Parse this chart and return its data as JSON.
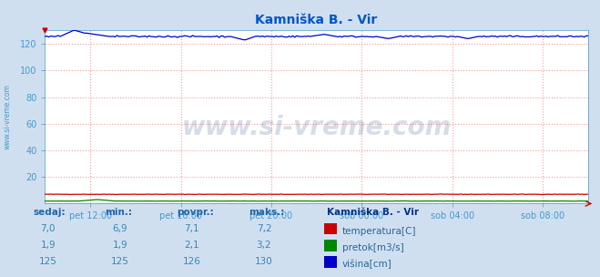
{
  "title": "Kamniška B. - Vir",
  "title_color": "#0055cc",
  "bg_color": "#d0dff0",
  "plot_bg_color": "#ffffff",
  "watermark": "www.si-vreme.com",
  "watermark_color": "#1a4488",
  "watermark_alpha": 0.18,
  "grid_color": "#ff9999",
  "grid_linestyle": "dotted",
  "xlabel_color": "#4499cc",
  "ylabel_color": "#4499cc",
  "x_ticks": [
    "pet 12:00",
    "pet 16:00",
    "pet 20:00",
    "sob 00:00",
    "sob 04:00",
    "sob 08:00"
  ],
  "ylim": [
    0,
    130
  ],
  "yticks": [
    20,
    40,
    60,
    80,
    100,
    120
  ],
  "n_points": 288,
  "temp_color": "#cc0000",
  "pretok_color": "#008800",
  "visina_color": "#0000cc",
  "legend_title": "Kamniška B. - Vir",
  "legend_title_color": "#003388",
  "legend_label_color": "#226699",
  "table_header_color": "#2266aa",
  "table_data_color": "#3388bb",
  "sedaj_label": "sedaj:",
  "min_label": "min.:",
  "povpr_label": "povpr.:",
  "maks_label": "maks.:",
  "temp_sedaj": "7,0",
  "temp_min": "6,9",
  "temp_povpr": "7,1",
  "temp_maks": "7,2",
  "pretok_sedaj": "1,9",
  "pretok_min": "1,9",
  "pretok_povpr": "2,1",
  "pretok_maks": "3,2",
  "visina_sedaj": "125",
  "visina_min": "125",
  "visina_povpr": "126",
  "visina_maks": "130",
  "sidebar_text": "www.si-vreme.com",
  "sidebar_color": "#4499cc"
}
